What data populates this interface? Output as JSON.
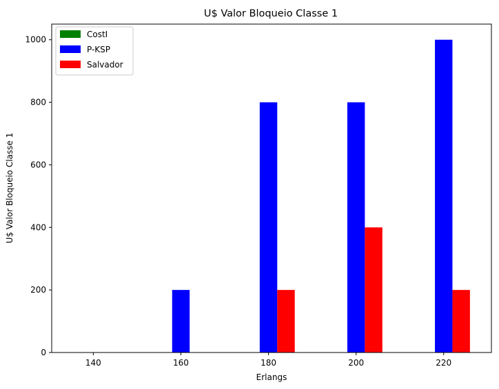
{
  "chart_data": {
    "type": "bar",
    "title": "U$ Valor Bloqueio Classe 1",
    "xlabel": "Erlangs",
    "ylabel": "U$ Valor Bloqueio Classe 1",
    "categories": [
      "140",
      "160",
      "180",
      "200",
      "220"
    ],
    "ylim": [
      0,
      1050
    ],
    "yticks": [
      "0",
      "200",
      "400",
      "600",
      "800",
      "1000"
    ],
    "grid": false,
    "legend_position": "top-left",
    "series": [
      {
        "name": "CostI",
        "color": "#008000",
        "values": [
          0,
          0,
          0,
          0,
          0
        ]
      },
      {
        "name": "P-KSP",
        "color": "#0000ff",
        "values": [
          0,
          200,
          800,
          800,
          1000
        ]
      },
      {
        "name": "Salvador",
        "color": "#ff0000",
        "values": [
          0,
          0,
          200,
          400,
          200
        ]
      }
    ]
  }
}
